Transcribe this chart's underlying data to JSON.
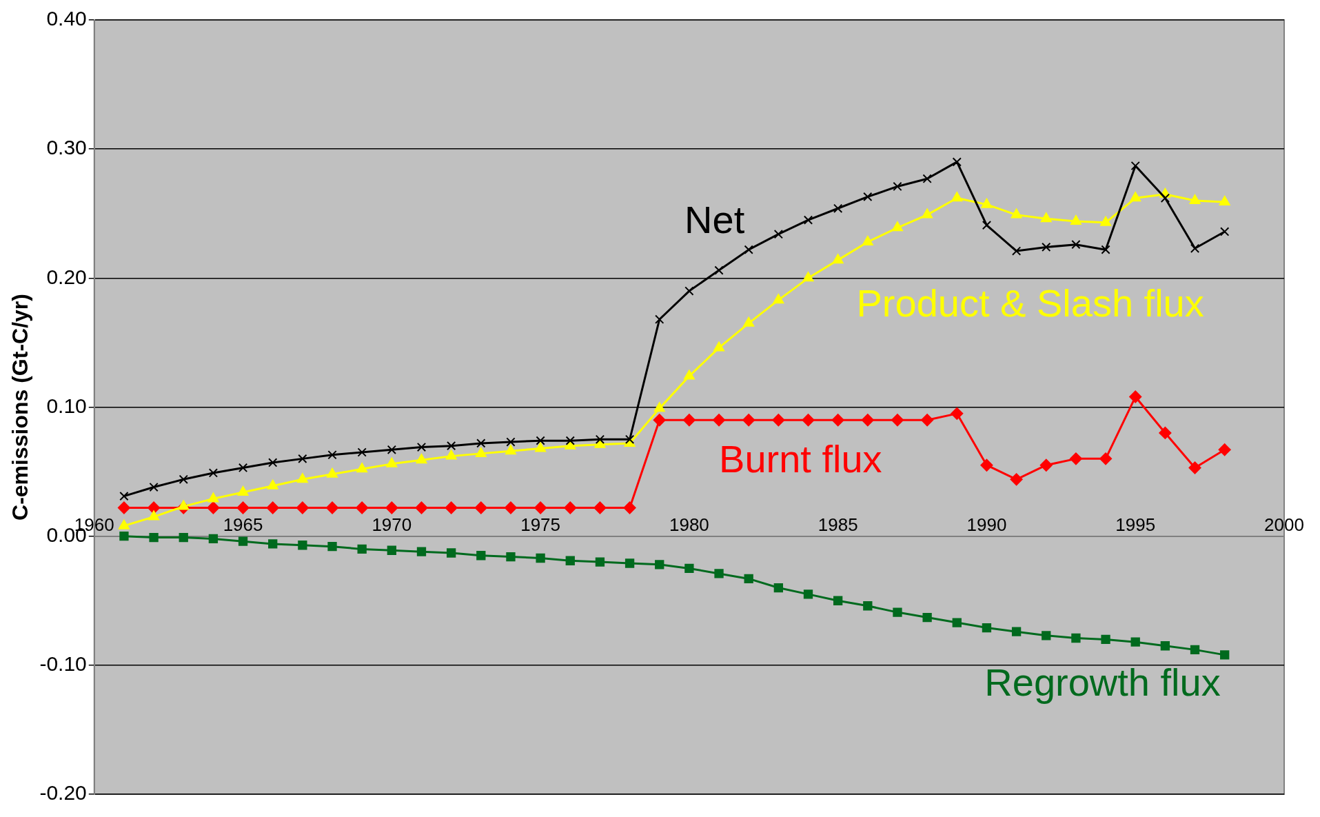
{
  "chart_data": {
    "type": "line",
    "ylabel": "C-emissions (Gt-C/yr)",
    "x": [
      1961,
      1962,
      1963,
      1964,
      1965,
      1966,
      1967,
      1968,
      1969,
      1970,
      1971,
      1972,
      1973,
      1974,
      1975,
      1976,
      1977,
      1978,
      1979,
      1980,
      1981,
      1982,
      1983,
      1984,
      1985,
      1986,
      1987,
      1988,
      1989,
      1990,
      1991,
      1992,
      1993,
      1994,
      1995,
      1996,
      1997,
      1998
    ],
    "series": [
      {
        "name": "Net",
        "color": "#000000",
        "marker": "cross",
        "values": [
          0.031,
          0.038,
          0.044,
          0.049,
          0.053,
          0.057,
          0.06,
          0.063,
          0.065,
          0.067,
          0.069,
          0.07,
          0.072,
          0.073,
          0.074,
          0.074,
          0.075,
          0.075,
          0.168,
          0.19,
          0.206,
          0.222,
          0.234,
          0.245,
          0.254,
          0.263,
          0.271,
          0.277,
          0.29,
          0.241,
          0.221,
          0.224,
          0.226,
          0.222,
          0.287,
          0.262,
          0.223,
          0.236
        ]
      },
      {
        "name": "Product & Slash flux",
        "color": "#ffff00",
        "marker": "triangle",
        "values": [
          0.008,
          0.015,
          0.023,
          0.029,
          0.034,
          0.039,
          0.044,
          0.048,
          0.052,
          0.056,
          0.059,
          0.062,
          0.064,
          0.066,
          0.068,
          0.07,
          0.071,
          0.072,
          0.099,
          0.124,
          0.146,
          0.165,
          0.183,
          0.2,
          0.214,
          0.228,
          0.239,
          0.249,
          0.262,
          0.257,
          0.249,
          0.246,
          0.244,
          0.243,
          0.262,
          0.265,
          0.26,
          0.259
        ]
      },
      {
        "name": "Burnt flux",
        "color": "#ff0000",
        "marker": "diamond",
        "values": [
          0.022,
          0.022,
          0.022,
          0.022,
          0.022,
          0.022,
          0.022,
          0.022,
          0.022,
          0.022,
          0.022,
          0.022,
          0.022,
          0.022,
          0.022,
          0.022,
          0.022,
          0.022,
          0.09,
          0.09,
          0.09,
          0.09,
          0.09,
          0.09,
          0.09,
          0.09,
          0.09,
          0.09,
          0.095,
          0.055,
          0.044,
          0.055,
          0.06,
          0.06,
          0.108,
          0.08,
          0.053,
          0.067
        ]
      },
      {
        "name": "Regrowth flux",
        "color": "#006a1e",
        "marker": "square",
        "values": [
          0.0,
          -0.001,
          -0.001,
          -0.002,
          -0.004,
          -0.006,
          -0.007,
          -0.008,
          -0.01,
          -0.011,
          -0.012,
          -0.013,
          -0.015,
          -0.016,
          -0.017,
          -0.019,
          -0.02,
          -0.021,
          -0.022,
          -0.025,
          -0.029,
          -0.033,
          -0.04,
          -0.045,
          -0.05,
          -0.054,
          -0.059,
          -0.063,
          -0.067,
          -0.071,
          -0.074,
          -0.077,
          -0.079,
          -0.08,
          -0.082,
          -0.085,
          -0.088,
          -0.092
        ]
      }
    ],
    "xlim": [
      1960,
      2000
    ],
    "xticks": [
      1960,
      1965,
      1970,
      1975,
      1980,
      1985,
      1990,
      1995,
      2000
    ],
    "ylim": [
      -0.2,
      0.4
    ],
    "yticks": [
      {
        "value": -0.2,
        "label": "-0.20"
      },
      {
        "value": -0.1,
        "label": "-0.10"
      },
      {
        "value": 0,
        "label": "0.00"
      },
      {
        "value": 0.1,
        "label": "0.10"
      },
      {
        "value": 0.2,
        "label": "0.20"
      },
      {
        "value": 0.3,
        "label": "0.30"
      },
      {
        "value": 0.4,
        "label": "0.40"
      }
    ],
    "grid": "y",
    "legend": false,
    "line_style": "solid"
  }
}
